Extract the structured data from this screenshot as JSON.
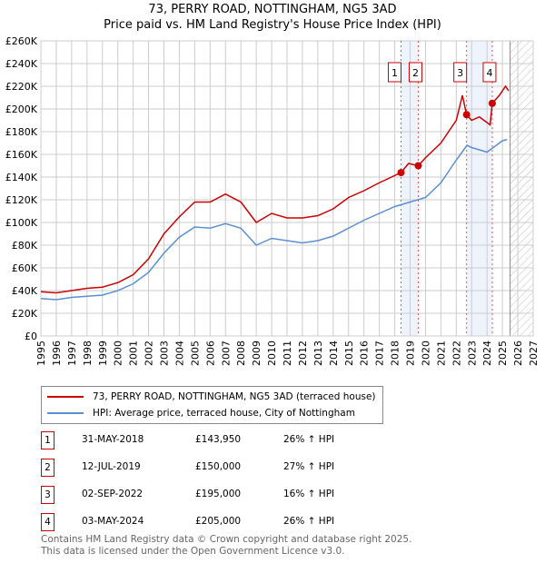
{
  "chart_data": {
    "type": "line",
    "title": "73, PERRY ROAD, NOTTINGHAM, NG5 3AD",
    "subtitle": "Price paid vs. HM Land Registry's House Price Index (HPI)",
    "xlim": [
      1995,
      2027
    ],
    "ylim": [
      0,
      260000
    ],
    "x_ticks": [
      "1995",
      "1996",
      "1997",
      "1998",
      "1999",
      "2000",
      "2001",
      "2002",
      "2003",
      "2004",
      "2005",
      "2006",
      "2007",
      "2008",
      "2009",
      "2010",
      "2011",
      "2012",
      "2013",
      "2014",
      "2015",
      "2016",
      "2017",
      "2018",
      "2019",
      "2020",
      "2021",
      "2022",
      "2023",
      "2024",
      "2025",
      "2026",
      "2027"
    ],
    "y_ticks": [
      "£0",
      "£20K",
      "£40K",
      "£60K",
      "£80K",
      "£100K",
      "£120K",
      "£140K",
      "£160K",
      "£180K",
      "£200K",
      "£220K",
      "£240K",
      "£260K"
    ],
    "grid": true,
    "forecast_hatch_from": 2025.5,
    "series": [
      {
        "name": "73, PERRY ROAD, NOTTINGHAM, NG5 3AD (terraced house)",
        "color": "#cc0000",
        "x": [
          1995,
          1996,
          1997,
          1998,
          1999,
          2000,
          2001,
          2002,
          2003,
          2004,
          2005,
          2006,
          2007,
          2008,
          2009,
          2010,
          2011,
          2012,
          2013,
          2014,
          2015,
          2016,
          2017,
          2018.41,
          2018.9,
          2019.53,
          2020,
          2021,
          2022,
          2022.4,
          2022.67,
          2023,
          2023.5,
          2024.2,
          2024.34,
          2024.8,
          2025.2,
          2025.4
        ],
        "y": [
          39000,
          38000,
          40000,
          42000,
          43000,
          47000,
          54000,
          68000,
          90000,
          105000,
          118000,
          118000,
          125000,
          118000,
          100000,
          108000,
          104000,
          104000,
          106000,
          112000,
          122000,
          128000,
          135000,
          143950,
          152000,
          150000,
          157000,
          170000,
          190000,
          212000,
          195000,
          190000,
          193000,
          186000,
          205000,
          212000,
          220000,
          216000
        ]
      },
      {
        "name": "HPI: Average price, terraced house, City of Nottingham",
        "color": "#5b8fd4",
        "x": [
          1995,
          1996,
          1997,
          1998,
          1999,
          2000,
          2001,
          2002,
          2003,
          2004,
          2005,
          2006,
          2007,
          2008,
          2009,
          2010,
          2011,
          2012,
          2013,
          2014,
          2015,
          2016,
          2017,
          2018,
          2019,
          2020,
          2021,
          2022,
          2022.7,
          2023,
          2024,
          2024.5,
          2025,
          2025.3
        ],
        "y": [
          33000,
          32000,
          34000,
          35000,
          36000,
          40000,
          46000,
          56000,
          73000,
          87000,
          96000,
          95000,
          99000,
          95000,
          80000,
          86000,
          84000,
          82000,
          84000,
          88000,
          95000,
          102000,
          108000,
          114000,
          118000,
          122000,
          135000,
          155000,
          168000,
          166000,
          162000,
          167000,
          172000,
          173000
        ]
      }
    ],
    "sales": [
      {
        "n": "1",
        "x": 2018.41,
        "y": 143950,
        "date": "31-MAY-2018",
        "price": "£143,950",
        "hpi": "26% ↑ HPI"
      },
      {
        "n": "2",
        "x": 2019.53,
        "y": 150000,
        "date": "12-JUL-2019",
        "price": "£150,000",
        "hpi": "27% ↑ HPI"
      },
      {
        "n": "3",
        "x": 2022.67,
        "y": 195000,
        "date": "02-SEP-2022",
        "price": "£195,000",
        "hpi": "16% ↑ HPI"
      },
      {
        "n": "4",
        "x": 2024.34,
        "y": 205000,
        "date": "03-MAY-2024",
        "price": "£205,000",
        "hpi": "26% ↑ HPI"
      }
    ]
  },
  "footer": {
    "line1": "Contains HM Land Registry data © Crown copyright and database right 2025.",
    "line2": "This data is licensed under the Open Government Licence v3.0."
  }
}
